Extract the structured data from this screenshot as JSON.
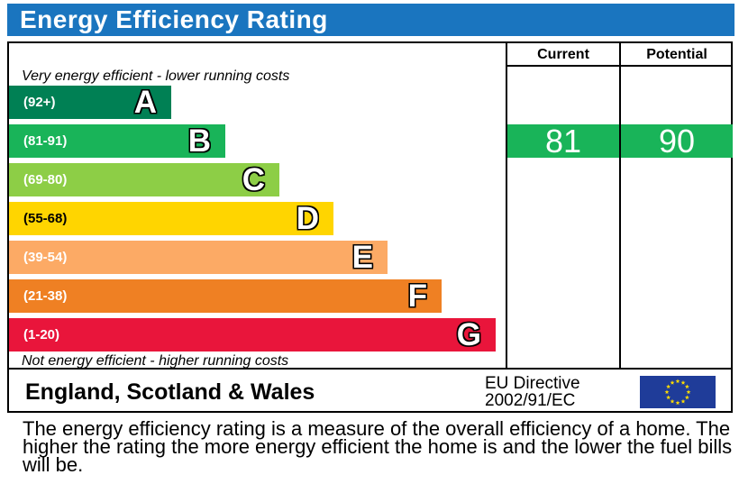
{
  "title": "Energy Efficiency Rating",
  "headers": {
    "current": "Current",
    "potential": "Potential"
  },
  "top_note": "Very energy efficient - lower running costs",
  "bottom_note": "Not energy efficient - higher running costs",
  "chart_data": {
    "type": "bar",
    "title": "Energy Efficiency Rating",
    "bands": [
      {
        "letter": "A",
        "range": "(92+)",
        "color": "#008054"
      },
      {
        "letter": "B",
        "range": "(81-91)",
        "color": "#19b459"
      },
      {
        "letter": "C",
        "range": "(69-80)",
        "color": "#8dce46"
      },
      {
        "letter": "D",
        "range": "(55-68)",
        "color": "#ffd500"
      },
      {
        "letter": "E",
        "range": "(39-54)",
        "color": "#fcaa65"
      },
      {
        "letter": "F",
        "range": "(21-38)",
        "color": "#ef8023"
      },
      {
        "letter": "G",
        "range": "(1-20)",
        "color": "#e9153b"
      }
    ],
    "current": {
      "value": 81,
      "band": "B",
      "label": "81"
    },
    "potential": {
      "value": 90,
      "band": "B",
      "label": "90"
    }
  },
  "footer": {
    "region": "England, Scotland & Wales",
    "directive_line1": "EU Directive",
    "directive_line2": "2002/91/EC"
  },
  "description": "The energy efficiency rating is a measure of the overall efficiency of a home. The higher the rating the more energy efficient the home is and the lower the fuel bills will be."
}
